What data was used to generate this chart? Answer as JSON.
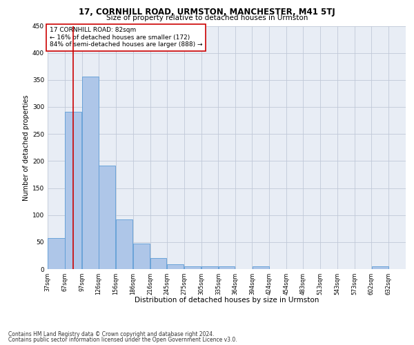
{
  "title": "17, CORNHILL ROAD, URMSTON, MANCHESTER, M41 5TJ",
  "subtitle": "Size of property relative to detached houses in Urmston",
  "xlabel": "Distribution of detached houses by size in Urmston",
  "ylabel": "Number of detached properties",
  "footer1": "Contains HM Land Registry data © Crown copyright and database right 2024.",
  "footer2": "Contains public sector information licensed under the Open Government Licence v3.0.",
  "annotation_line1": "17 CORNHILL ROAD: 82sqm",
  "annotation_line2": "← 16% of detached houses are smaller (172)",
  "annotation_line3": "84% of semi-detached houses are larger (888) →",
  "property_size": 82,
  "bar_left_edges": [
    37,
    67,
    97,
    126,
    156,
    186,
    216,
    245,
    275,
    305,
    335,
    364,
    394,
    424,
    454,
    483,
    513,
    543,
    573,
    602
  ],
  "bar_widths": [
    30,
    30,
    29,
    30,
    30,
    30,
    29,
    30,
    30,
    30,
    29,
    30,
    30,
    30,
    29,
    30,
    30,
    30,
    29,
    30
  ],
  "bar_heights": [
    57,
    291,
    356,
    192,
    92,
    47,
    20,
    9,
    5,
    5,
    5,
    0,
    5,
    0,
    0,
    0,
    0,
    0,
    0,
    5
  ],
  "tick_labels": [
    "37sqm",
    "67sqm",
    "97sqm",
    "126sqm",
    "156sqm",
    "186sqm",
    "216sqm",
    "245sqm",
    "275sqm",
    "305sqm",
    "335sqm",
    "364sqm",
    "394sqm",
    "424sqm",
    "454sqm",
    "483sqm",
    "513sqm",
    "543sqm",
    "573sqm",
    "602sqm",
    "632sqm"
  ],
  "bar_color": "#aec6e8",
  "bar_edge_color": "#5b9bd5",
  "red_line_color": "#cc0000",
  "annotation_box_edge": "#cc0000",
  "grid_color": "#c0c8d8",
  "bg_color": "#e8edf5",
  "ylim": [
    0,
    450
  ],
  "yticks": [
    0,
    50,
    100,
    150,
    200,
    250,
    300,
    350,
    400,
    450
  ],
  "xlim_min": 37,
  "xlim_max": 662
}
